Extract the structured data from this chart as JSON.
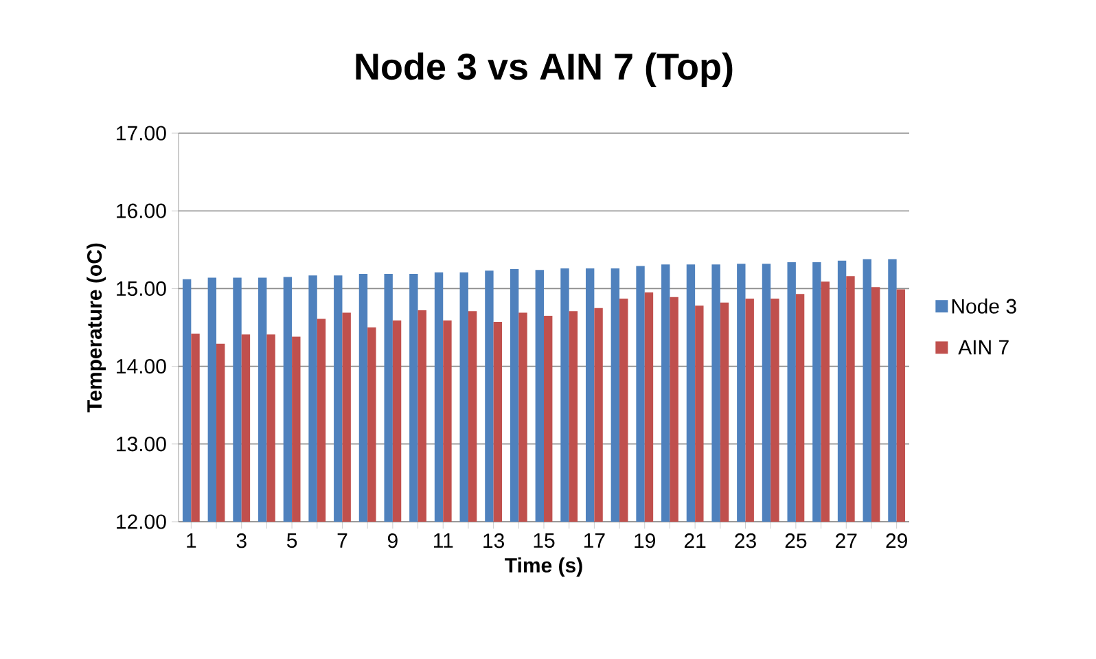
{
  "chart_data": {
    "type": "bar",
    "title": "Node 3 vs AIN 7 (Top)",
    "xlabel": "Time (s)",
    "ylabel": "Temperature (oC)",
    "categories": [
      "1",
      null,
      "3",
      null,
      "5",
      null,
      "7",
      null,
      "9",
      null,
      "11",
      null,
      "13",
      null,
      "15",
      null,
      "17",
      null,
      "19",
      null,
      "21",
      null,
      "23",
      null,
      "25",
      null,
      "27",
      null,
      "29"
    ],
    "series": [
      {
        "name": "Node 3",
        "color": "#4f81bd",
        "values": [
          15.12,
          15.14,
          15.14,
          15.14,
          15.15,
          15.17,
          15.17,
          15.19,
          15.19,
          15.19,
          15.21,
          15.21,
          15.23,
          15.25,
          15.24,
          15.26,
          15.26,
          15.26,
          15.29,
          15.31,
          15.31,
          15.31,
          15.32,
          15.32,
          15.34,
          15.34,
          15.36,
          15.38,
          15.38
        ]
      },
      {
        "name": "AIN 7",
        "color": "#c0504d",
        "values": [
          14.42,
          14.29,
          14.41,
          14.41,
          14.38,
          14.61,
          14.69,
          14.5,
          14.59,
          14.72,
          14.59,
          14.71,
          14.57,
          14.69,
          14.65,
          14.71,
          14.75,
          14.87,
          14.95,
          14.89,
          14.78,
          14.82,
          14.87,
          14.87,
          14.93,
          15.09,
          15.16,
          15.02,
          14.99
        ]
      }
    ],
    "ylim": [
      12,
      17
    ],
    "yticks": [
      {
        "value": 12,
        "label": "12.00"
      },
      {
        "value": 13,
        "label": "13.00"
      },
      {
        "value": 14,
        "label": "14.00"
      },
      {
        "value": 15,
        "label": "15.00"
      },
      {
        "value": 16,
        "label": "16.00"
      },
      {
        "value": 17,
        "label": "17.00"
      }
    ],
    "grid": "y",
    "legend": "right"
  }
}
